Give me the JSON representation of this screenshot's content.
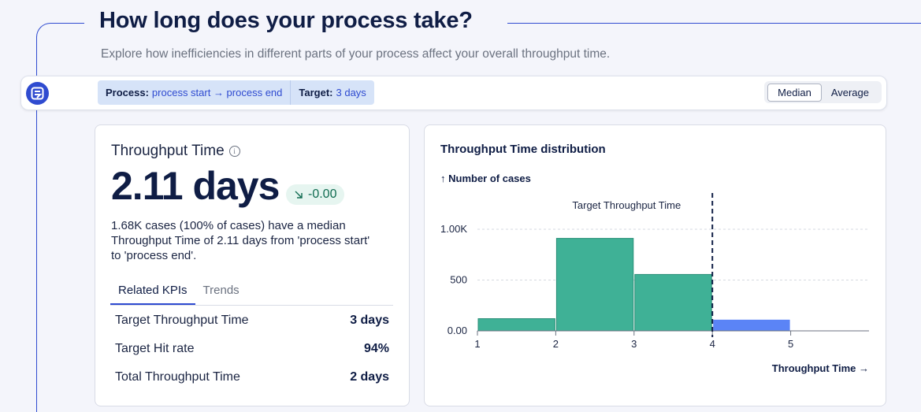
{
  "header": {
    "title": "How long does your process take?",
    "subtitle": "Explore how inefficiencies in different parts of your process affect your overall throughput time."
  },
  "filterbar": {
    "logo_icon": "app-logo-icon",
    "process_label": "Process:",
    "process_value": "process start → process end",
    "target_label": "Target:",
    "target_value": "3 days",
    "toggle": {
      "options": [
        "Median",
        "Average"
      ],
      "selected": "Median"
    }
  },
  "kpi_card": {
    "title": "Throughput Time",
    "info_icon": "info-icon",
    "value": "2.11 days",
    "delta": "-0.00",
    "delta_icon": "trend-down-arrow-icon",
    "description": "1.68K cases (100% of cases) have a median Throughput Time of 2.11 days from 'process start' to 'process end'.",
    "tabs": [
      "Related KPIs",
      "Trends"
    ],
    "active_tab": "Related KPIs",
    "rows": [
      {
        "label": "Target Throughput Time",
        "value": "3 days"
      },
      {
        "label": "Target Hit rate",
        "value": "94%"
      },
      {
        "label": "Total Throughput Time",
        "value": "2 days"
      }
    ]
  },
  "chart_data": {
    "type": "bar",
    "title": "Throughput Time distribution",
    "ylabel": "↑ Number of cases",
    "xlabel": "Throughput Time →",
    "x_ticks": [
      1,
      2,
      3,
      4,
      5
    ],
    "y_tick_labels": [
      "0.00",
      "500",
      "1.00K"
    ],
    "y_ticks": [
      0,
      500,
      1000
    ],
    "ylim": [
      0,
      1000
    ],
    "xlim": [
      1,
      6
    ],
    "bins": [
      {
        "x0": 1,
        "x1": 2,
        "value": 120,
        "color": "#3fb196"
      },
      {
        "x0": 2,
        "x1": 3,
        "value": 910,
        "color": "#3fb196"
      },
      {
        "x0": 3,
        "x1": 4,
        "value": 555,
        "color": "#3fb196"
      },
      {
        "x0": 4,
        "x1": 5,
        "value": 110,
        "color": "#5b84f6"
      }
    ],
    "target": {
      "x": 4,
      "label": "Target Throughput Time"
    },
    "grid": "horizontal dashed"
  }
}
